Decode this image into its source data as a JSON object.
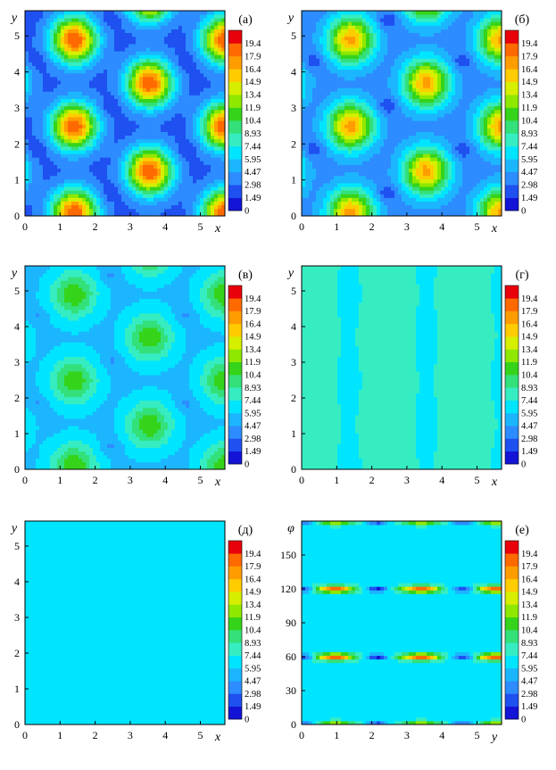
{
  "chart_data": {
    "type": "heatmap",
    "colorbar": {
      "levels": [
        "19.4",
        "17.9",
        "16.4",
        "14.9",
        "13.4",
        "11.9",
        "10.4",
        "8.93",
        "7.44",
        "5.95",
        "4.47",
        "2.98",
        "1.49",
        "0"
      ],
      "colors": [
        "#e8000b",
        "#ff6a00",
        "#ff9d00",
        "#ffcc00",
        "#d6ef00",
        "#8ee800",
        "#35d41a",
        "#33e07a",
        "#36edc2",
        "#00e5ff",
        "#1cb6ff",
        "#2d8cff",
        "#1f50f0",
        "#1414d6"
      ]
    },
    "panels": [
      {
        "letter": "(а)",
        "xlabel": "x",
        "ylabel": "y",
        "x_ticks": [
          "0",
          "1",
          "2",
          "3",
          "4",
          "5"
        ],
        "y_ticks": [
          "0",
          "1",
          "2",
          "3",
          "4",
          "5"
        ],
        "xlim": [
          0,
          5.7
        ],
        "ylim": [
          0,
          5.7
        ],
        "peak": 19.4,
        "background": 2.2,
        "min": 0.8,
        "style": "hex"
      },
      {
        "letter": "(б)",
        "xlabel": "x",
        "ylabel": "y",
        "x_ticks": [
          "0",
          "1",
          "2",
          "3",
          "4",
          "5"
        ],
        "y_ticks": [
          "0",
          "1",
          "2",
          "3",
          "4",
          "5"
        ],
        "xlim": [
          0,
          5.7
        ],
        "ylim": [
          0,
          5.7
        ],
        "peak": 17.0,
        "background": 3.5,
        "min": 1.2,
        "style": "hex"
      },
      {
        "letter": "(в)",
        "xlabel": "x",
        "ylabel": "y",
        "x_ticks": [
          "0",
          "1",
          "2",
          "3",
          "4",
          "5"
        ],
        "y_ticks": [
          "0",
          "1",
          "2",
          "3",
          "4",
          "5"
        ],
        "xlim": [
          0,
          5.7
        ],
        "ylim": [
          0,
          5.7
        ],
        "peak": 11.5,
        "background": 5.5,
        "min": 4.0,
        "style": "hex"
      },
      {
        "letter": "(г)",
        "xlabel": "x",
        "ylabel": "y",
        "x_ticks": [
          "0",
          "1",
          "2",
          "3",
          "4",
          "5"
        ],
        "y_ticks": [
          "0",
          "1",
          "2",
          "3",
          "4",
          "5"
        ],
        "xlim": [
          0,
          5.7
        ],
        "ylim": [
          0,
          5.7
        ],
        "peak": 7.5,
        "background": 7.0,
        "min": 6.4,
        "style": "stripes"
      },
      {
        "letter": "(д)",
        "xlabel": "x",
        "ylabel": "y",
        "x_ticks": [
          "0",
          "1",
          "2",
          "3",
          "4",
          "5"
        ],
        "y_ticks": [
          "0",
          "1",
          "2",
          "3",
          "4",
          "5"
        ],
        "xlim": [
          0,
          5.7
        ],
        "ylim": [
          0,
          5.7
        ],
        "peak": 7.0,
        "background": 7.0,
        "min": 7.0,
        "style": "uniform"
      },
      {
        "letter": "(е)",
        "xlabel": "y",
        "ylabel": "φ",
        "x_ticks": [
          "0",
          "1",
          "2",
          "3",
          "4",
          "5"
        ],
        "y_ticks": [
          "0",
          "30",
          "60",
          "90",
          "120",
          "150"
        ],
        "xlim": [
          0,
          5.7
        ],
        "ylim": [
          0,
          180
        ],
        "peak": 19.4,
        "background": 7.0,
        "min": 0.5,
        "style": "bands"
      }
    ],
    "grid": false
  }
}
